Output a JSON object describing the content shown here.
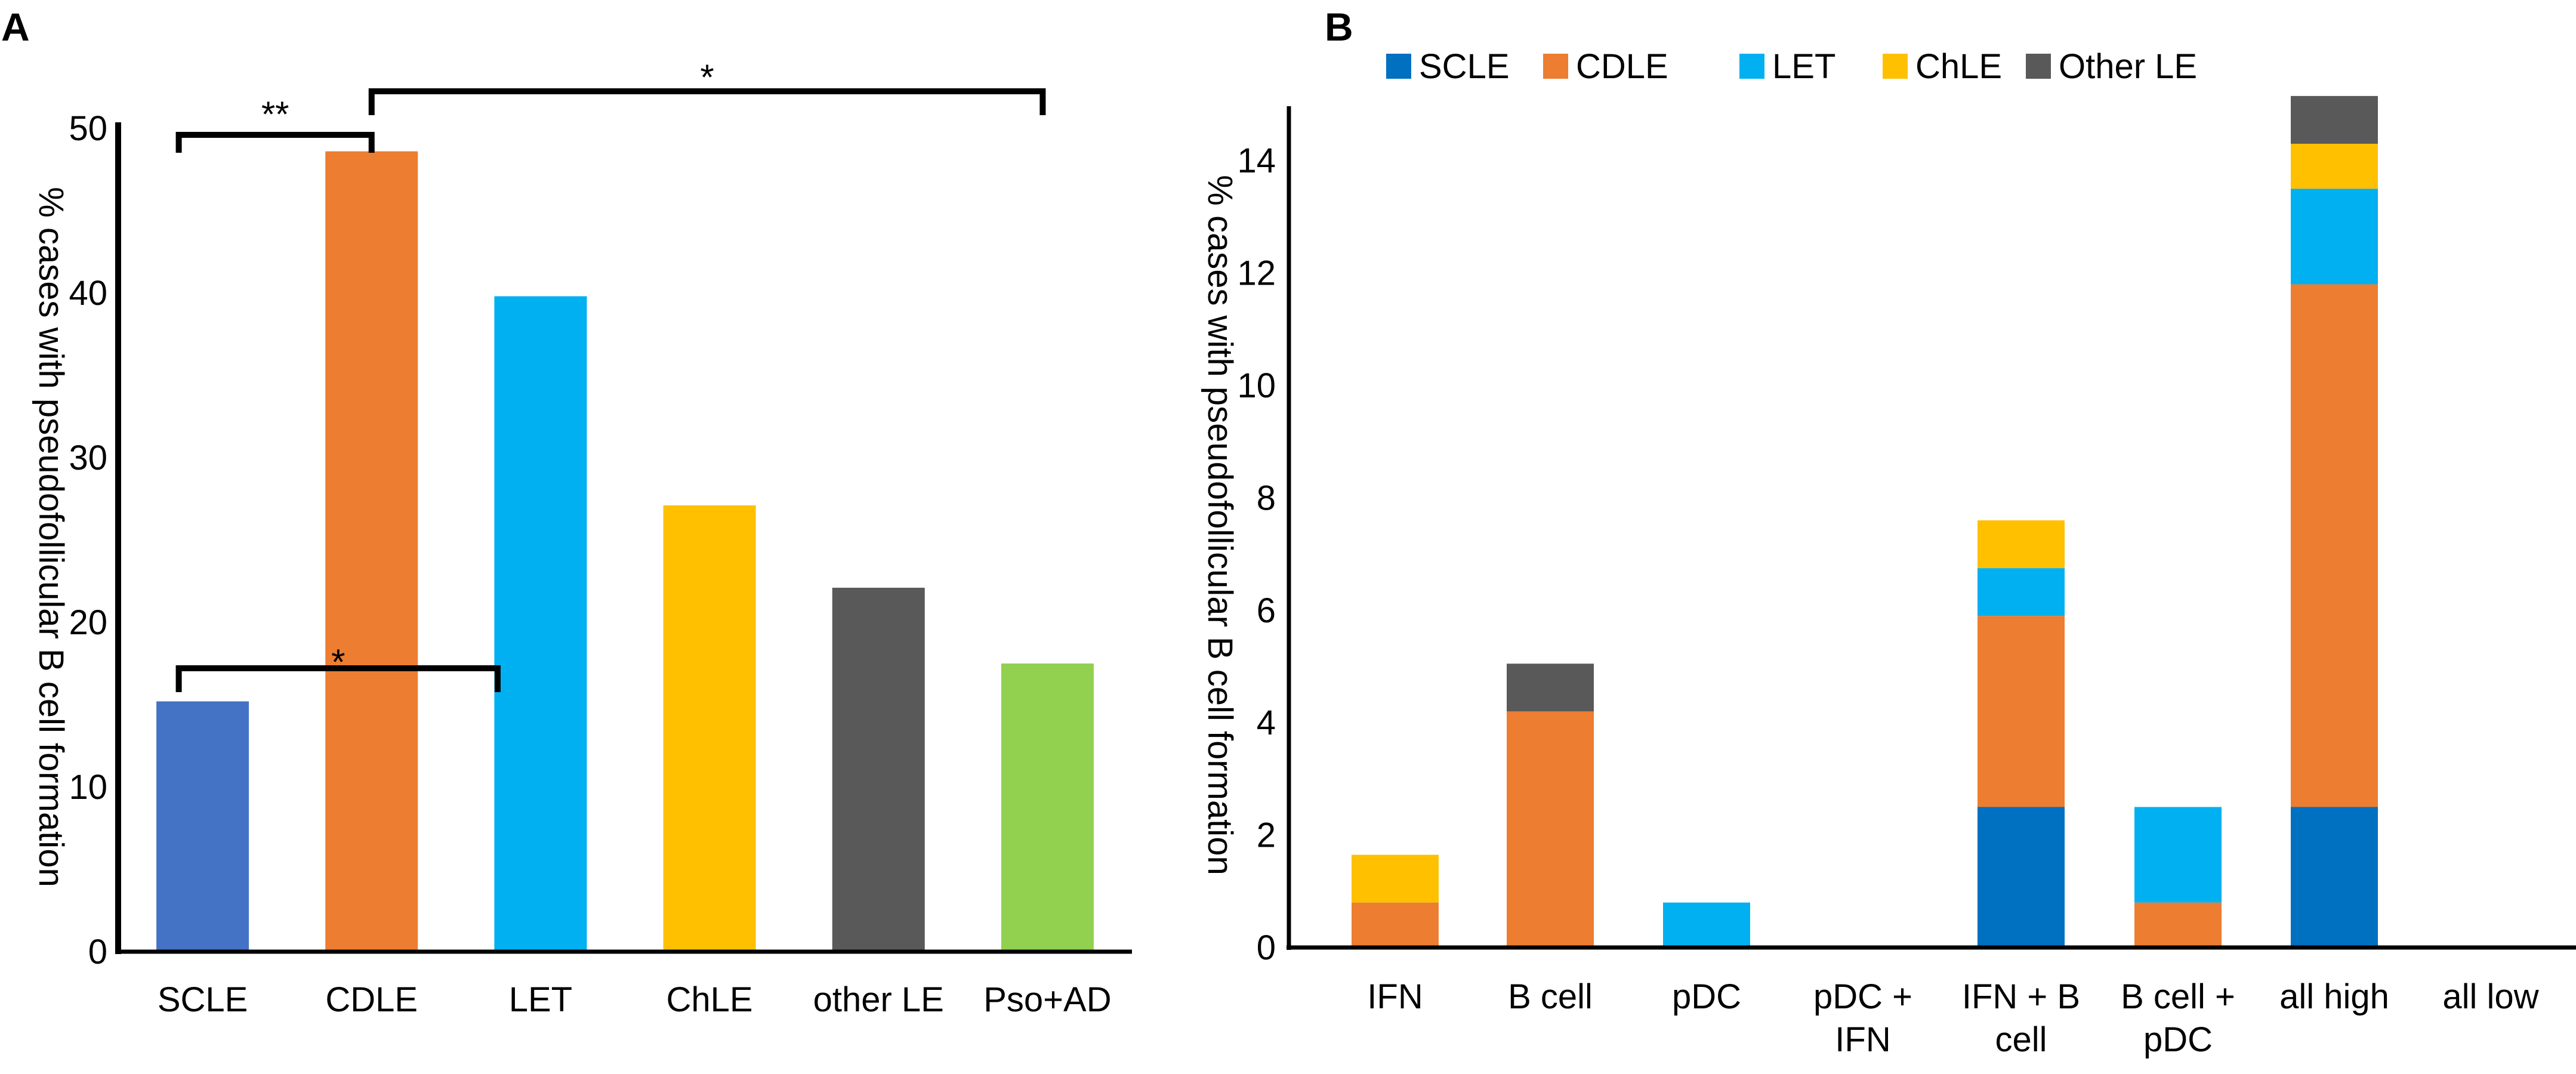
{
  "chart_data": [
    {
      "panel": "A",
      "type": "bar",
      "ylabel": "% cases with pseudofollicular B cell formation",
      "ylim": [
        0,
        50
      ],
      "yticks": [
        0,
        10,
        20,
        30,
        40,
        50
      ],
      "categories": [
        "SCLE",
        "CDLE",
        "LET",
        "ChLE",
        "other LE",
        "Pso+AD"
      ],
      "values": [
        15.2,
        48.6,
        39.8,
        27.1,
        22.1,
        17.5
      ],
      "colors": [
        "#4472C4",
        "#ED7D31",
        "#00B0F0",
        "#FFC000",
        "#595959",
        "#92D050"
      ],
      "significance": [
        {
          "from": "SCLE",
          "to": "CDLE",
          "label": "**"
        },
        {
          "from": "CDLE",
          "to": "Pso+AD",
          "label": "*"
        },
        {
          "from": "SCLE",
          "to": "LET",
          "label": "*"
        }
      ]
    },
    {
      "panel": "B",
      "type": "bar",
      "stacked": true,
      "ylabel": "% cases with pseudofollicular B cell formation",
      "ylim": [
        0,
        15
      ],
      "yticks": [
        0,
        2,
        4,
        6,
        8,
        10,
        12,
        14
      ],
      "categories": [
        [
          "IFN"
        ],
        [
          "B cell"
        ],
        [
          "pDC"
        ],
        [
          "pDC +",
          "IFN"
        ],
        [
          "IFN + B",
          "cell"
        ],
        [
          "B cell +",
          "pDC"
        ],
        [
          "all high"
        ],
        [
          "all low"
        ]
      ],
      "legend_position": "top",
      "series": [
        {
          "name": "SCLE",
          "color": "#0070C0",
          "values": [
            0,
            0,
            0,
            0,
            2.5,
            0,
            2.5,
            0
          ]
        },
        {
          "name": "CDLE",
          "color": "#ED7D31",
          "values": [
            0.8,
            4.2,
            0,
            0,
            3.4,
            0.8,
            9.3,
            0
          ]
        },
        {
          "name": "LET",
          "color": "#00B0F0",
          "values": [
            0,
            0,
            0.8,
            0,
            0.85,
            1.7,
            1.7,
            0
          ]
        },
        {
          "name": "ChLE",
          "color": "#FFC000",
          "values": [
            0.85,
            0,
            0,
            0,
            0.85,
            0,
            0.8,
            0
          ]
        },
        {
          "name": "Other LE",
          "color": "#595959",
          "values": [
            0,
            0.85,
            0,
            0,
            0,
            0,
            0.85,
            0
          ]
        }
      ]
    }
  ]
}
